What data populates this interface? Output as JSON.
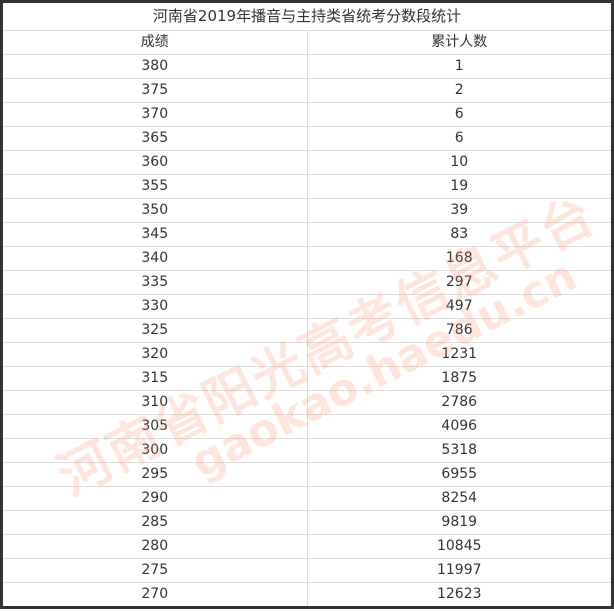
{
  "title": "河南省2019年播音与主持类省统考分数段统计",
  "headers": [
    "成绩",
    "累计人数"
  ],
  "rows": [
    [
      "380",
      "1"
    ],
    [
      "375",
      "2"
    ],
    [
      "370",
      "6"
    ],
    [
      "365",
      "6"
    ],
    [
      "360",
      "10"
    ],
    [
      "355",
      "19"
    ],
    [
      "350",
      "39"
    ],
    [
      "345",
      "83"
    ],
    [
      "340",
      "168"
    ],
    [
      "335",
      "297"
    ],
    [
      "330",
      "497"
    ],
    [
      "325",
      "786"
    ],
    [
      "320",
      "1231"
    ],
    [
      "315",
      "1875"
    ],
    [
      "310",
      "2786"
    ],
    [
      "305",
      "4096"
    ],
    [
      "300",
      "5318"
    ],
    [
      "295",
      "6955"
    ],
    [
      "290",
      "8254"
    ],
    [
      "285",
      "9819"
    ],
    [
      "280",
      "10845"
    ],
    [
      "275",
      "11997"
    ],
    [
      "270",
      "12623"
    ]
  ],
  "watermark": {
    "name": "河南省阳光高考信息平台",
    "url": "gaokao.haedu.cn",
    "color": "#fa8c6e"
  }
}
